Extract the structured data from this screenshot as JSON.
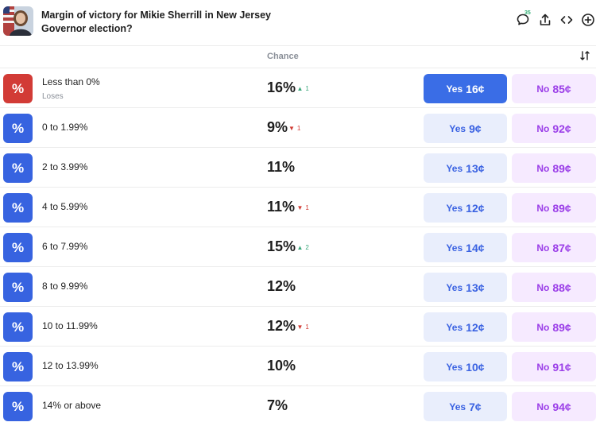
{
  "header": {
    "title": "Margin of victory for Mikie Sherrill in New Jersey Governor election?",
    "comment_count": "35"
  },
  "columns": {
    "chance_label": "Chance"
  },
  "colors": {
    "lose_icon": "#d23b36",
    "range_icon": "#3763e0",
    "up": "#3aa67a",
    "down": "#d03b34",
    "yes_active": "#3a6de6",
    "yes_bg": "#e9eefc",
    "no_bg": "#f6eaff"
  },
  "rows": [
    {
      "icon": "%",
      "label": "Less than 0%",
      "sub": "Loses",
      "chance": "16%",
      "change": "1",
      "dir": "up",
      "yes": "Yes",
      "yes_price": "16¢",
      "no": "No",
      "no_price": "85¢",
      "active": true,
      "icon_kind": "lose"
    },
    {
      "icon": "%",
      "label": "0 to 1.99%",
      "sub": "",
      "chance": "9%",
      "change": "1",
      "dir": "down",
      "yes": "Yes",
      "yes_price": "9¢",
      "no": "No",
      "no_price": "92¢",
      "active": false,
      "icon_kind": "range"
    },
    {
      "icon": "%",
      "label": "2 to 3.99%",
      "sub": "",
      "chance": "11%",
      "change": "",
      "dir": "",
      "yes": "Yes",
      "yes_price": "13¢",
      "no": "No",
      "no_price": "89¢",
      "active": false,
      "icon_kind": "range"
    },
    {
      "icon": "%",
      "label": "4 to 5.99%",
      "sub": "",
      "chance": "11%",
      "change": "1",
      "dir": "down",
      "yes": "Yes",
      "yes_price": "12¢",
      "no": "No",
      "no_price": "89¢",
      "active": false,
      "icon_kind": "range"
    },
    {
      "icon": "%",
      "label": "6 to 7.99%",
      "sub": "",
      "chance": "15%",
      "change": "2",
      "dir": "up",
      "yes": "Yes",
      "yes_price": "14¢",
      "no": "No",
      "no_price": "87¢",
      "active": false,
      "icon_kind": "range"
    },
    {
      "icon": "%",
      "label": "8 to 9.99%",
      "sub": "",
      "chance": "12%",
      "change": "",
      "dir": "",
      "yes": "Yes",
      "yes_price": "13¢",
      "no": "No",
      "no_price": "88¢",
      "active": false,
      "icon_kind": "range"
    },
    {
      "icon": "%",
      "label": "10 to 11.99%",
      "sub": "",
      "chance": "12%",
      "change": "1",
      "dir": "down",
      "yes": "Yes",
      "yes_price": "12¢",
      "no": "No",
      "no_price": "89¢",
      "active": false,
      "icon_kind": "range"
    },
    {
      "icon": "%",
      "label": "12 to 13.99%",
      "sub": "",
      "chance": "10%",
      "change": "",
      "dir": "",
      "yes": "Yes",
      "yes_price": "10¢",
      "no": "No",
      "no_price": "91¢",
      "active": false,
      "icon_kind": "range"
    },
    {
      "icon": "%",
      "label": "14% or above",
      "sub": "",
      "chance": "7%",
      "change": "",
      "dir": "",
      "yes": "Yes",
      "yes_price": "7¢",
      "no": "No",
      "no_price": "94¢",
      "active": false,
      "icon_kind": "range"
    }
  ]
}
